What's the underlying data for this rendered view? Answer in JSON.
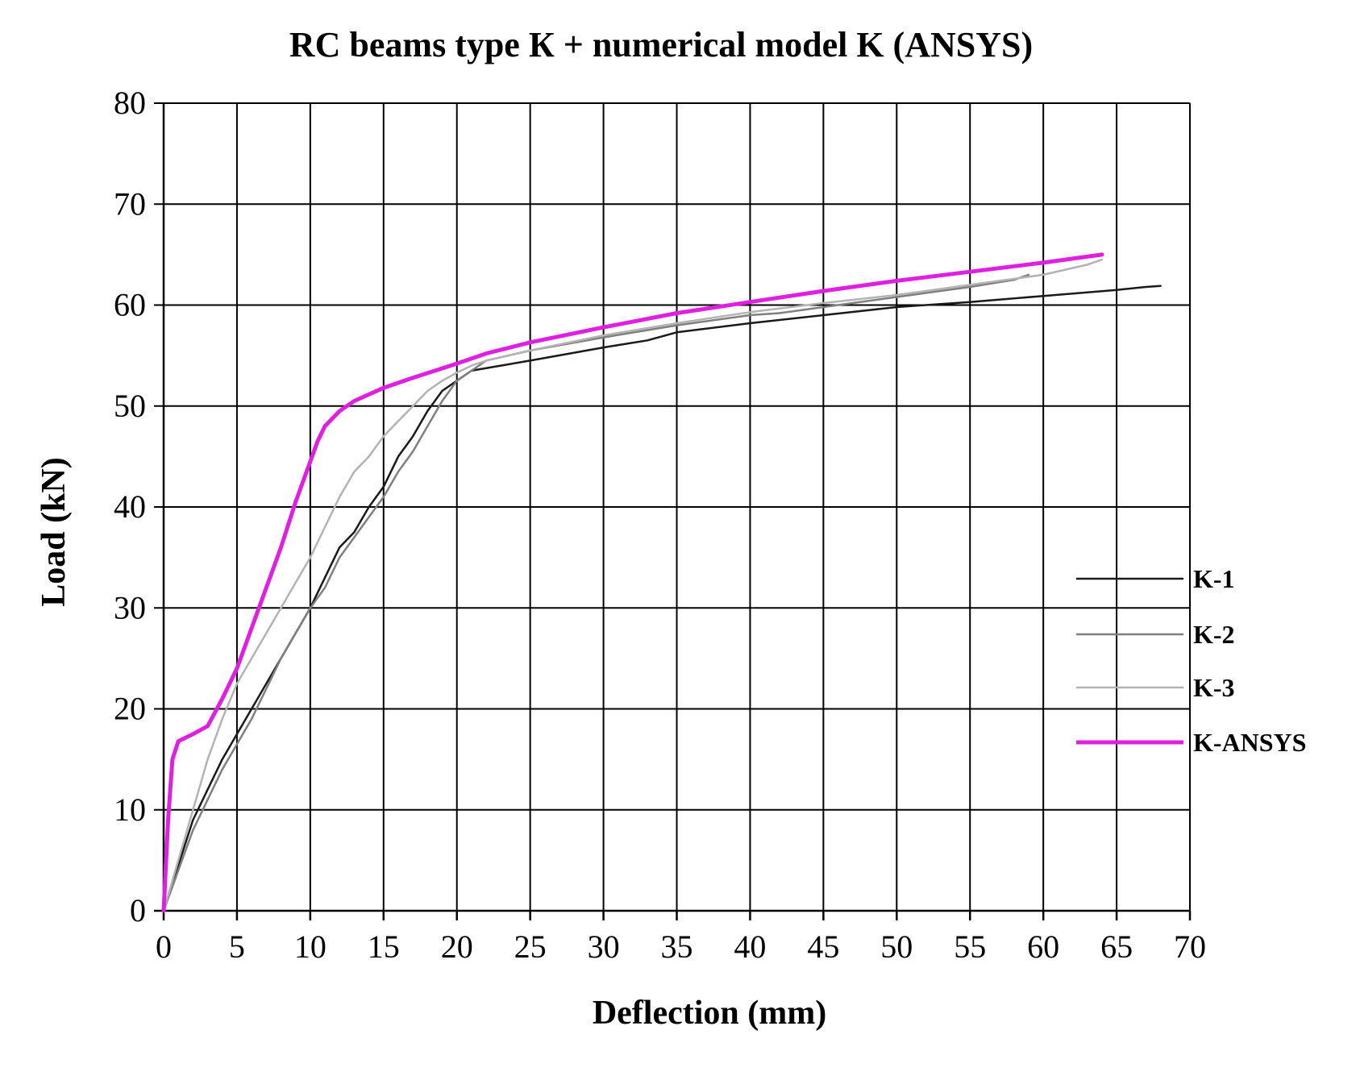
{
  "chart_data": {
    "type": "line",
    "title": "RC beams type К + numerical model K (ANSYS)",
    "xlabel": "Deflection (mm)",
    "ylabel": "Load (kN)",
    "xlim": [
      0,
      70
    ],
    "ylim": [
      0,
      80
    ],
    "xticks": [
      0,
      5,
      10,
      15,
      20,
      25,
      30,
      35,
      40,
      45,
      50,
      55,
      60,
      65,
      70
    ],
    "yticks": [
      0,
      10,
      20,
      30,
      40,
      50,
      60,
      70,
      80
    ],
    "grid": true,
    "legend_position": "right",
    "series": [
      {
        "name": "K-1",
        "color": "#1a1a1a",
        "width": 2.5,
        "points": [
          [
            0,
            0
          ],
          [
            2,
            9
          ],
          [
            4,
            15
          ],
          [
            6,
            20
          ],
          [
            8,
            25
          ],
          [
            10,
            30
          ],
          [
            11,
            33
          ],
          [
            12,
            36
          ],
          [
            13,
            37.5
          ],
          [
            14,
            40
          ],
          [
            15,
            42
          ],
          [
            16,
            45
          ],
          [
            17,
            47
          ],
          [
            18,
            49.5
          ],
          [
            19,
            51.5
          ],
          [
            20,
            52.5
          ],
          [
            21,
            53.5
          ],
          [
            23,
            54
          ],
          [
            25,
            54.5
          ],
          [
            30,
            55.8
          ],
          [
            33,
            56.5
          ],
          [
            35,
            57.3
          ],
          [
            40,
            58.2
          ],
          [
            45,
            59
          ],
          [
            50,
            59.8
          ],
          [
            55,
            60.3
          ],
          [
            60,
            60.9
          ],
          [
            65,
            61.5
          ],
          [
            67,
            61.8
          ],
          [
            68,
            61.9
          ]
        ]
      },
      {
        "name": "K-2",
        "color": "#7f7f7f",
        "width": 2.5,
        "points": [
          [
            0,
            0
          ],
          [
            2,
            8
          ],
          [
            4,
            14
          ],
          [
            6,
            19
          ],
          [
            8,
            25
          ],
          [
            10,
            30
          ],
          [
            11,
            32
          ],
          [
            12,
            35
          ],
          [
            13,
            37
          ],
          [
            14,
            39
          ],
          [
            15,
            41
          ],
          [
            16,
            43.5
          ],
          [
            17,
            45.5
          ],
          [
            18,
            48
          ],
          [
            19,
            50.5
          ],
          [
            20,
            52.5
          ],
          [
            21,
            53.5
          ],
          [
            22,
            54.5
          ],
          [
            25,
            55.5
          ],
          [
            30,
            56.8
          ],
          [
            35,
            58
          ],
          [
            40,
            59
          ],
          [
            42,
            59.2
          ],
          [
            45,
            59.8
          ],
          [
            50,
            60.8
          ],
          [
            55,
            61.8
          ],
          [
            58,
            62.5
          ],
          [
            59,
            63
          ]
        ]
      },
      {
        "name": "K-3",
        "color": "#b3b3b3",
        "width": 2.5,
        "points": [
          [
            0,
            0
          ],
          [
            1,
            5
          ],
          [
            2,
            10
          ],
          [
            3,
            15
          ],
          [
            4,
            19
          ],
          [
            5,
            22.5
          ],
          [
            6,
            25
          ],
          [
            7,
            27.5
          ],
          [
            8,
            30
          ],
          [
            9,
            32.5
          ],
          [
            10,
            35
          ],
          [
            11,
            38
          ],
          [
            12,
            41
          ],
          [
            13,
            43.5
          ],
          [
            14,
            45
          ],
          [
            15,
            47
          ],
          [
            16,
            48.5
          ],
          [
            17,
            50
          ],
          [
            18,
            51.5
          ],
          [
            19,
            52.5
          ],
          [
            20,
            53.3
          ],
          [
            21,
            54
          ],
          [
            22,
            54.5
          ],
          [
            25,
            55.5
          ],
          [
            30,
            57
          ],
          [
            35,
            58.2
          ],
          [
            40,
            59.3
          ],
          [
            45,
            60.2
          ],
          [
            50,
            61
          ],
          [
            55,
            62
          ],
          [
            60,
            63
          ],
          [
            63,
            64
          ],
          [
            64,
            64.5
          ]
        ]
      },
      {
        "name": "K-ANSYS",
        "color": "#e020e0",
        "width": 5,
        "points": [
          [
            0,
            0
          ],
          [
            0.3,
            9
          ],
          [
            0.6,
            15
          ],
          [
            1,
            16.8
          ],
          [
            2,
            17.5
          ],
          [
            3,
            18.3
          ],
          [
            4,
            21
          ],
          [
            5,
            24
          ],
          [
            6,
            28
          ],
          [
            7,
            32
          ],
          [
            8,
            36
          ],
          [
            9,
            40.5
          ],
          [
            10,
            44.5
          ],
          [
            10.5,
            46.5
          ],
          [
            11,
            48
          ],
          [
            12,
            49.5
          ],
          [
            13,
            50.5
          ],
          [
            15,
            51.8
          ],
          [
            17,
            52.8
          ],
          [
            20,
            54.2
          ],
          [
            22,
            55.2
          ],
          [
            25,
            56.3
          ],
          [
            30,
            57.8
          ],
          [
            35,
            59.2
          ],
          [
            40,
            60.3
          ],
          [
            45,
            61.4
          ],
          [
            50,
            62.4
          ],
          [
            55,
            63.3
          ],
          [
            60,
            64.2
          ],
          [
            63,
            64.8
          ],
          [
            64,
            65
          ]
        ]
      }
    ]
  }
}
